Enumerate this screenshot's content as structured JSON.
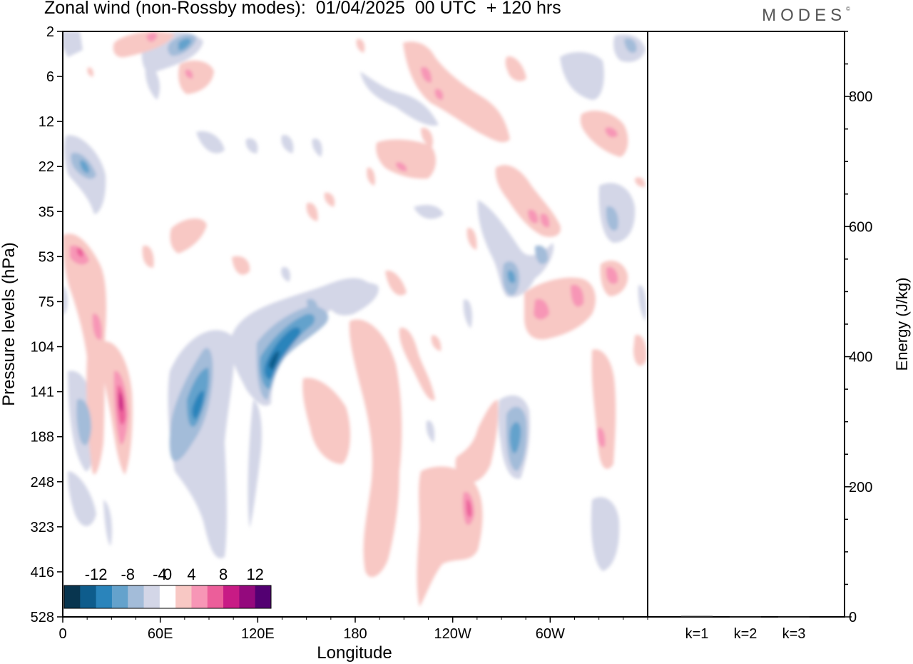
{
  "chart_data": {
    "type": "heatmap",
    "title": "Zonal wind (non-Rossby modes):  01/04/2025  00 UTC  + 120 hrs",
    "brand": "MODES",
    "xlabel": "Longitude",
    "ylabel": "Pressure levels (hPa)",
    "x_ticks": [
      "0",
      "60E",
      "120E",
      "180",
      "120W",
      "60W"
    ],
    "x_tick_degrees": [
      0,
      60,
      120,
      180,
      240,
      300
    ],
    "x_range": [
      0,
      360
    ],
    "y_ticks": [
      "2",
      "6",
      "12",
      "22",
      "35",
      "53",
      "75",
      "104",
      "141",
      "188",
      "248",
      "323",
      "416",
      "528"
    ],
    "colorbar": {
      "labels": [
        "-12",
        "-8",
        "-4",
        "0",
        "4",
        "8",
        "12"
      ],
      "levels": [
        -14,
        -12,
        -10,
        -8,
        -6,
        -4,
        -2,
        2,
        4,
        6,
        8,
        10,
        12,
        14
      ],
      "colors": [
        "#08354f",
        "#0e5c8c",
        "#2a84bb",
        "#64a2cc",
        "#a3bcd9",
        "#d3d6e7",
        "#ffffff",
        "#f8c8c4",
        "#f796b6",
        "#ec5e9a",
        "#c81b85",
        "#94097d",
        "#530072"
      ]
    },
    "energy_panel": {
      "ylabel": "Energy (J/kg)",
      "y_ticks": [
        "0",
        "200",
        "400",
        "600",
        "800"
      ],
      "ylim": [
        0,
        900
      ],
      "categories": [
        "k=1",
        "k=2",
        "k=3"
      ],
      "values": [
        1.5,
        0.8,
        0.6
      ]
    },
    "features": [
      {
        "sign": "negative",
        "lon": [
          75,
          85
        ],
        "level_hPa": [
          110,
          200
        ],
        "peak": -8
      },
      {
        "sign": "negative",
        "lon": [
          115,
          140
        ],
        "level_hPa": [
          75,
          130
        ],
        "peak": -12
      },
      {
        "sign": "negative",
        "lon": [
          270,
          285
        ],
        "level_hPa": [
          150,
          240
        ],
        "peak": -6
      },
      {
        "sign": "negative",
        "lon": [
          5,
          20
        ],
        "level_hPa": [
          15,
          30
        ],
        "peak": -6
      },
      {
        "sign": "positive",
        "lon": [
          30,
          40
        ],
        "level_hPa": [
          100,
          200
        ],
        "peak": 8
      },
      {
        "sign": "positive",
        "lon": [
          225,
          250
        ],
        "level_hPa": [
          250,
          420
        ],
        "peak": 6
      },
      {
        "sign": "positive",
        "lon": [
          340,
          355
        ],
        "level_hPa": [
          40,
          80
        ],
        "peak": 6
      },
      {
        "sign": "positive",
        "lon": [
          280,
          300
        ],
        "level_hPa": [
          70,
          110
        ],
        "peak": 6
      },
      {
        "sign": "positive",
        "lon": [
          0,
          15
        ],
        "level_hPa": [
          40,
          70
        ],
        "peak": 6
      }
    ]
  }
}
